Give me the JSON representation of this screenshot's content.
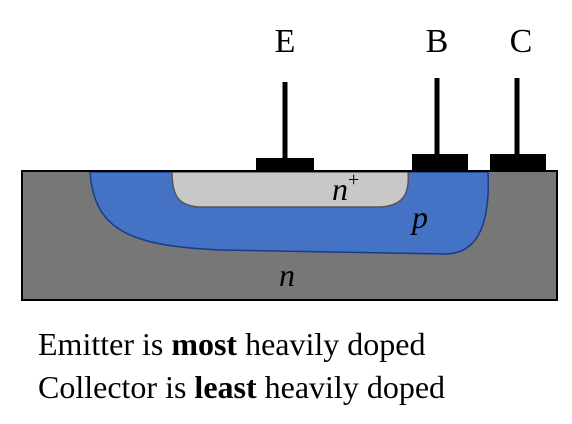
{
  "terminals": {
    "emitter": "E",
    "base": "B",
    "collector": "C"
  },
  "regions": {
    "emitter_region": "n",
    "emitter_region_sup": "+",
    "base_region": "p",
    "collector_region": "n"
  },
  "caption": {
    "line1": {
      "before": "Emitter is ",
      "emphasis": "most",
      "after": " heavily doped"
    },
    "line2": {
      "before": "Collector is ",
      "emphasis": "least",
      "after": " heavily doped"
    }
  },
  "colors": {
    "collector_n": "#777777",
    "base_p": "#4472c4",
    "emitter_nplus": "#c8c8c8",
    "contact": "#000000"
  }
}
